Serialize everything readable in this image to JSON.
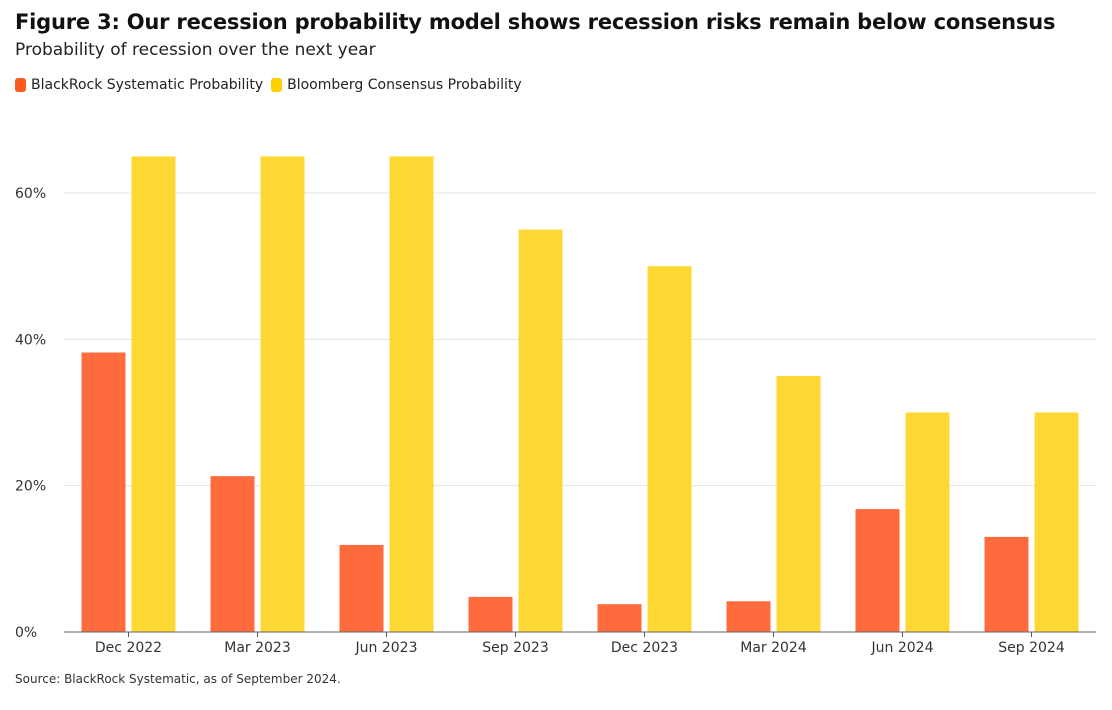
{
  "header": {
    "title": "Figure 3: Our recession probability model shows recession risks remain below consensus",
    "subtitle": "Probability of recession over the next year"
  },
  "footer": {
    "source": "Source: BlackRock Systematic, as of September 2024."
  },
  "chart_data": {
    "type": "bar",
    "title": "Figure 3: Our recession probability model shows recession risks remain below consensus",
    "subtitle": "Probability of recession over the next year",
    "xlabel": "",
    "ylabel": "",
    "categories": [
      "Dec 2022",
      "Mar 2023",
      "Jun 2023",
      "Sep 2023",
      "Dec 2023",
      "Mar 2024",
      "Jun 2024",
      "Sep 2024"
    ],
    "series": [
      {
        "name": "BlackRock Systematic Probability",
        "color": "#ff6b3d",
        "values": [
          38.2,
          21.3,
          11.9,
          4.8,
          3.8,
          4.2,
          16.8,
          13.0
        ]
      },
      {
        "name": "Bloomberg Consensus Probability",
        "color": "#fdd835",
        "values": [
          65,
          65,
          65,
          55,
          50,
          35,
          30,
          30
        ]
      }
    ],
    "ylim": [
      0,
      60
    ],
    "yticks": [
      0,
      20,
      40,
      60
    ],
    "ytick_labels": [
      "0%",
      "20%",
      "40%",
      "60%"
    ],
    "grid": true,
    "legend_position": "top-left"
  }
}
